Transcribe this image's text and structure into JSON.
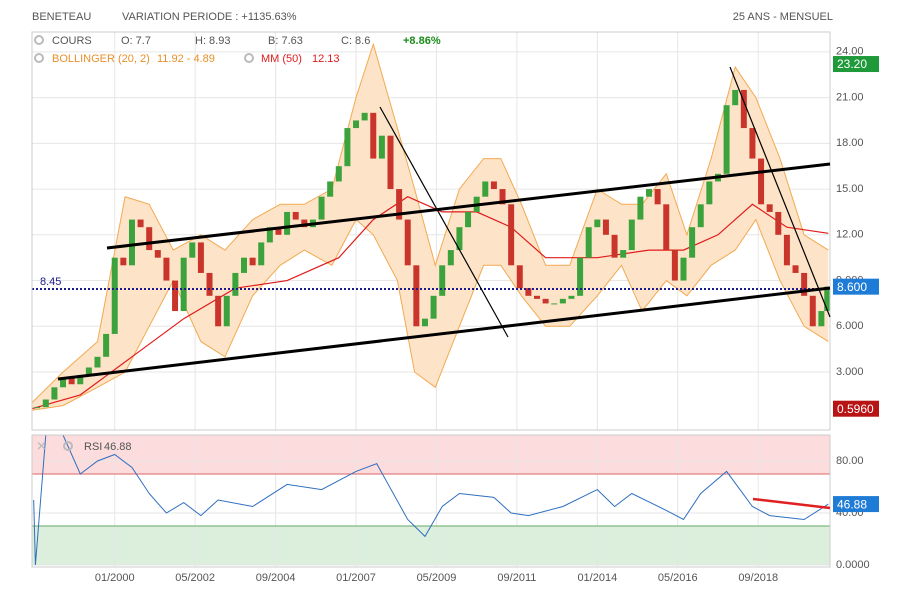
{
  "header": {
    "name": "BENETEAU",
    "variation": "VARIATION PERIODE : +1135.63%",
    "period": "25 ANS - MENSUEL"
  },
  "legend": {
    "cours": "COURS",
    "open": "O: 7.7",
    "high": "H: 8.93",
    "low": "B: 7.63",
    "close": "C: 8.6",
    "change": "+8.86%",
    "bollinger": "BOLLINGER (20, 2)",
    "bollinger_values": "11.92 - 4.89",
    "ma": "MM (50)",
    "ma_value": "12.13",
    "rsi": "RSI",
    "rsi_value": "46.88"
  },
  "chart_data": [
    {
      "type": "candlestick",
      "xlim": [
        1997.6,
        2020.75
      ],
      "ylim": [
        -0.8,
        25.3
      ],
      "yticks": [
        {
          "value": 3,
          "label": "3.000"
        },
        {
          "value": 6,
          "label": "6.000"
        },
        {
          "value": 9,
          "label": "9.000"
        },
        {
          "value": 12,
          "label": "12.00"
        },
        {
          "value": 15,
          "label": "15.00"
        },
        {
          "value": 18,
          "label": "18.00"
        },
        {
          "value": 21,
          "label": "21.00"
        },
        {
          "value": 24,
          "label": "24.00"
        }
      ],
      "up_color": "#3ca23c",
      "down_color": "#c9352b",
      "x": [
        1997.75,
        1998,
        1998.25,
        1998.5,
        1998.75,
        1999,
        1999.25,
        1999.5,
        1999.75,
        2000,
        2000.25,
        2000.5,
        2000.75,
        2001,
        2001.25,
        2001.5,
        2001.75,
        2002,
        2002.25,
        2002.5,
        2002.75,
        2003,
        2003.25,
        2003.5,
        2003.75,
        2004,
        2004.25,
        2004.5,
        2004.75,
        2005,
        2005.25,
        2005.5,
        2005.75,
        2006,
        2006.25,
        2006.5,
        2006.75,
        2007,
        2007.25,
        2007.5,
        2007.75,
        2008,
        2008.25,
        2008.5,
        2008.75,
        2009,
        2009.25,
        2009.5,
        2009.75,
        2010,
        2010.25,
        2010.5,
        2010.75,
        2011,
        2011.25,
        2011.5,
        2011.75,
        2012,
        2012.25,
        2012.5,
        2012.75,
        2013,
        2013.25,
        2013.5,
        2013.75,
        2014,
        2014.25,
        2014.5,
        2014.75,
        2015,
        2015.25,
        2015.5,
        2015.75,
        2016,
        2016.25,
        2016.5,
        2016.75,
        2017,
        2017.25,
        2017.5,
        2017.75,
        2018,
        2018.25,
        2018.5,
        2018.75,
        2019,
        2019.25,
        2019.5,
        2019.75,
        2020,
        2020.25,
        2020.5,
        2020.67
      ],
      "values": [
        0.7,
        1.2,
        2.0,
        2.6,
        2.2,
        2.8,
        3.3,
        4.0,
        5.5,
        10.5,
        10.0,
        13.0,
        12.5,
        11.0,
        10.5,
        9.0,
        7.0,
        10.5,
        11.5,
        9.5,
        8.0,
        6.0,
        8.0,
        9.5,
        10.5,
        10.0,
        11.5,
        12.5,
        12.0,
        13.5,
        13.0,
        12.5,
        13.0,
        14.5,
        15.5,
        16.5,
        19.0,
        19.5,
        20.0,
        17.0,
        18.5,
        15.0,
        13.0,
        10.0,
        6.0,
        6.5,
        8.0,
        10.0,
        11.0,
        12.5,
        13.5,
        14.5,
        15.5,
        15.0,
        14.0,
        10.0,
        8.5,
        8.0,
        7.8,
        7.5,
        7.5,
        7.8,
        8.0,
        10.5,
        12.5,
        13.0,
        12.0,
        10.5,
        11.0,
        13.0,
        14.5,
        15.0,
        14.0,
        11.0,
        9.0,
        10.5,
        12.5,
        14.0,
        15.5,
        16.0,
        20.5,
        21.5,
        19.0,
        17.0,
        14.0,
        13.5,
        12.0,
        10.0,
        9.5,
        8.0,
        6.0,
        7.0,
        8.6
      ],
      "bollinger": {
        "color": "#f3a950",
        "fill": "#fde4c9",
        "x": [
          1997.6,
          1998.5,
          1999.5,
          2000.3,
          2001,
          2001.7,
          2002.5,
          2003.2,
          2004,
          2004.8,
          2005.5,
          2006.3,
          2007,
          2007.5,
          2008.2,
          2008.7,
          2009.3,
          2010,
          2010.7,
          2011.2,
          2011.8,
          2012.5,
          2013.2,
          2014,
          2014.7,
          2015.3,
          2016,
          2016.6,
          2017.3,
          2018,
          2018.6,
          2019.3,
          2020,
          2020.7
        ],
        "upper": [
          1,
          3,
          5,
          14.5,
          14,
          11,
          12,
          11,
          13,
          14,
          14,
          15,
          21,
          24.5,
          19,
          15,
          10,
          15,
          17,
          17,
          14,
          10,
          10,
          15,
          14,
          14,
          16,
          12,
          17,
          23,
          21,
          17,
          12,
          11
        ],
        "lower": [
          0.5,
          0.8,
          2,
          3,
          6,
          9,
          5,
          4,
          8,
          10,
          11,
          10,
          13,
          12,
          9,
          3,
          2,
          6,
          10,
          10,
          8,
          6,
          6,
          8,
          10,
          7,
          9,
          8,
          10,
          11,
          13,
          9,
          6,
          5
        ]
      },
      "ma": {
        "color": "#e01b1b",
        "x": [
          1997.6,
          1999,
          2000.5,
          2002,
          2003.5,
          2005,
          2006.5,
          2007.5,
          2008.5,
          2009.5,
          2010.5,
          2011.5,
          2012.5,
          2014,
          2015.5,
          2016.5,
          2017.5,
          2018.5,
          2019.5,
          2020.7
        ],
        "values": [
          0.6,
          1.5,
          4,
          6.5,
          8.5,
          9,
          10.5,
          13,
          14.5,
          13.5,
          13.5,
          12.5,
          10.5,
          10.5,
          11,
          11,
          12,
          14,
          12.5,
          12.1
        ]
      },
      "reference_line": {
        "value": 8.45,
        "label": "8.45",
        "color": "#1a1a8c"
      },
      "badges": [
        {
          "value": 23.2,
          "label": "23.20",
          "color": "#1f9a3a"
        },
        {
          "value": 8.6,
          "label": "8.600",
          "color": "#1e7bd6"
        },
        {
          "value": 0.596,
          "label": "0.5960",
          "color": "#b81414"
        }
      ]
    },
    {
      "type": "line",
      "xlim": [
        1997.6,
        2020.75
      ],
      "ylim": [
        -1.5,
        100
      ],
      "xticks": [
        {
          "value": 2000,
          "label": "01/2000"
        },
        {
          "value": 2002.333,
          "label": "05/2002"
        },
        {
          "value": 2004.667,
          "label": "09/2004"
        },
        {
          "value": 2007,
          "label": "01/2007"
        },
        {
          "value": 2009.333,
          "label": "05/2009"
        },
        {
          "value": 2011.667,
          "label": "09/2011"
        },
        {
          "value": 2014,
          "label": "01/2014"
        },
        {
          "value": 2016.333,
          "label": "05/2016"
        },
        {
          "value": 2018.667,
          "label": "09/2018"
        }
      ],
      "yticks": [
        {
          "value": 0,
          "label": "0.0000"
        },
        {
          "value": 40,
          "label": "40.00"
        },
        {
          "value": 80,
          "label": "80.00"
        }
      ],
      "zones": [
        {
          "from": 70,
          "to": 100,
          "color": "#fcdcdc"
        },
        {
          "from": 0,
          "to": 30,
          "color": "#dcefdc"
        }
      ],
      "color": "#2f6fc0",
      "x": [
        1997.65,
        1997.7,
        1998,
        1998.5,
        1999,
        1999.5,
        2000,
        2000.5,
        2001,
        2001.5,
        2002,
        2002.5,
        2003,
        2004,
        2005,
        2006,
        2007,
        2007.6,
        2008.5,
        2009,
        2009.5,
        2010,
        2011,
        2011.5,
        2012,
        2013,
        2014,
        2014.5,
        2015,
        2016,
        2016.5,
        2017,
        2017.75,
        2018.5,
        2019,
        2020,
        2020.7
      ],
      "values": [
        50,
        0,
        100,
        100,
        70,
        80,
        85,
        75,
        55,
        40,
        48,
        38,
        50,
        45,
        62,
        58,
        72,
        78,
        35,
        22,
        45,
        55,
        52,
        40,
        38,
        45,
        58,
        45,
        55,
        42,
        35,
        55,
        72,
        45,
        38,
        35,
        46.88
      ],
      "badge": {
        "value": 46.88,
        "label": "46.88",
        "color": "#1e7bd6"
      }
    }
  ]
}
